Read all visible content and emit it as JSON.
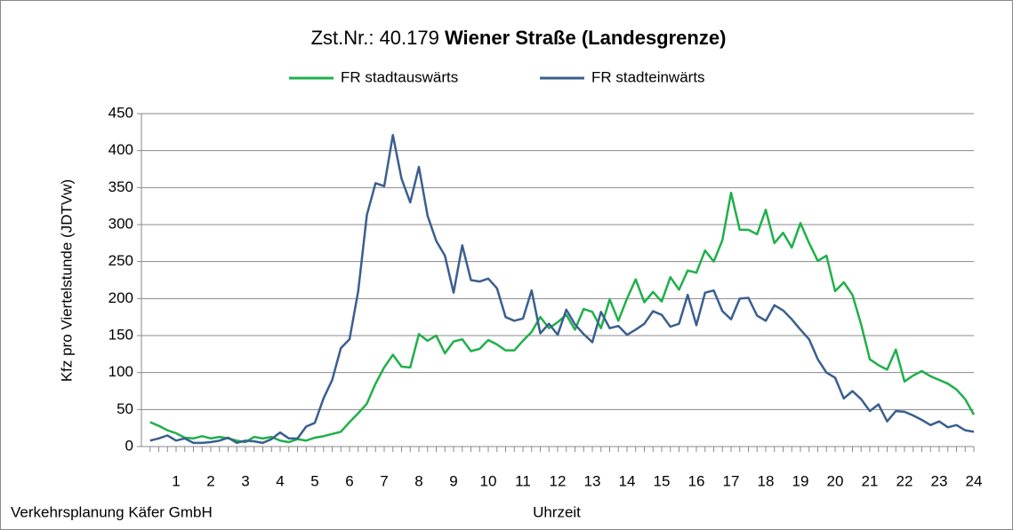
{
  "chart_data": {
    "type": "line",
    "title": "Zst.Nr.: 40.179",
    "title_bold": "Wiener Straße (Landesgrenze)",
    "y_label": "Kfz pro Viertelstunde (JDTVw)",
    "x_label": "Uhrzeit",
    "footer": "Verkehrsplanung Käfer GmbH",
    "grid": true,
    "legend": "top",
    "xlim": [
      0,
      24
    ],
    "xticks": [
      1,
      2,
      3,
      4,
      5,
      6,
      7,
      8,
      9,
      10,
      11,
      12,
      13,
      14,
      15,
      16,
      17,
      18,
      19,
      20,
      21,
      22,
      23,
      24
    ],
    "ylim": [
      0,
      450
    ],
    "yticks": [
      0,
      50,
      100,
      150,
      200,
      250,
      300,
      350,
      400,
      450
    ],
    "x": [
      0.25,
      0.5,
      0.75,
      1,
      1.25,
      1.5,
      1.75,
      2,
      2.25,
      2.5,
      2.75,
      3,
      3.25,
      3.5,
      3.75,
      4,
      4.25,
      4.5,
      4.75,
      5,
      5.25,
      5.5,
      5.75,
      6,
      6.25,
      6.5,
      6.75,
      7,
      7.25,
      7.5,
      7.75,
      8,
      8.25,
      8.5,
      8.75,
      9,
      9.25,
      9.5,
      9.75,
      10,
      10.25,
      10.5,
      10.75,
      11,
      11.25,
      11.5,
      11.75,
      12,
      12.25,
      12.5,
      12.75,
      13,
      13.25,
      13.5,
      13.75,
      14,
      14.25,
      14.5,
      14.75,
      15,
      15.25,
      15.5,
      15.75,
      16,
      16.25,
      16.5,
      16.75,
      17,
      17.25,
      17.5,
      17.75,
      18,
      18.25,
      18.5,
      18.75,
      19,
      19.25,
      19.5,
      19.75,
      20,
      20.25,
      20.5,
      20.75,
      21,
      21.25,
      21.5,
      21.75,
      22,
      22.25,
      22.5,
      22.75,
      23,
      23.25,
      23.5,
      23.75,
      24
    ],
    "series": [
      {
        "name": "FR stadtauswärts",
        "color": "#1fb04a",
        "values": [
          33,
          28,
          22,
          18,
          12,
          11,
          14,
          11,
          13,
          11,
          8,
          6,
          13,
          11,
          13,
          8,
          6,
          10,
          8,
          12,
          14,
          17,
          20,
          33,
          45,
          58,
          85,
          107,
          124,
          108,
          107,
          152,
          143,
          150,
          126,
          142,
          145,
          129,
          132,
          144,
          138,
          130,
          130,
          143,
          155,
          175,
          160,
          168,
          178,
          158,
          186,
          182,
          160,
          199,
          170,
          200,
          226,
          195,
          209,
          196,
          229,
          212,
          238,
          235,
          265,
          250,
          279,
          343,
          293,
          293,
          287,
          320,
          275,
          289,
          269,
          302,
          275,
          251,
          258,
          210,
          222,
          205,
          165,
          118,
          110,
          104,
          131,
          88,
          96,
          102,
          95,
          90,
          85,
          77,
          64,
          43
        ]
      },
      {
        "name": "FR stadteinwärts",
        "color": "#3a5f8f",
        "values": [
          8,
          11,
          15,
          8,
          11,
          5,
          5,
          6,
          8,
          12,
          5,
          8,
          7,
          5,
          10,
          19,
          11,
          11,
          27,
          32,
          65,
          90,
          133,
          145,
          210,
          313,
          356,
          352,
          421,
          362,
          330,
          378,
          312,
          278,
          258,
          208,
          272,
          225,
          223,
          227,
          214,
          175,
          170,
          173,
          211,
          153,
          166,
          151,
          185,
          165,
          152,
          141,
          182,
          160,
          163,
          151,
          158,
          166,
          183,
          178,
          162,
          166,
          205,
          164,
          208,
          211,
          183,
          172,
          200,
          201,
          177,
          170,
          191,
          184,
          172,
          158,
          145,
          118,
          100,
          93,
          65,
          75,
          64,
          48,
          57,
          34,
          48,
          47,
          42,
          36,
          29,
          34,
          26,
          29,
          22,
          20
        ]
      }
    ]
  }
}
